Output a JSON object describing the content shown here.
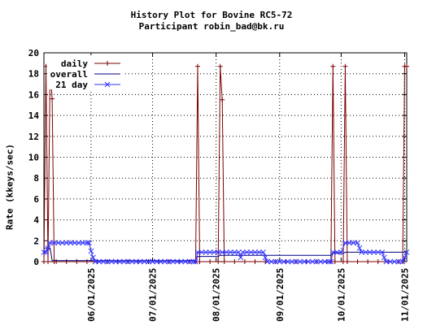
{
  "chart_data": {
    "type": "line",
    "title": "History Plot for Bovine RC5-72",
    "subtitle": "Participant robin_bad@bk.ru",
    "xlabel": "",
    "ylabel": "Rate (kkeys/sec)",
    "x_type": "date",
    "xlim": [
      "2025-05-09",
      "2025-11-02"
    ],
    "ylim": [
      0,
      20
    ],
    "yticks": [
      0,
      2,
      4,
      6,
      8,
      10,
      12,
      14,
      16,
      18,
      20
    ],
    "xtick_labels": [
      "06/01/2025",
      "07/01/2025",
      "08/01/2025",
      "09/01/2025",
      "10/01/2025",
      "11/01/2025"
    ],
    "grid": true,
    "legend_position": "top-left",
    "colors": {
      "daily": "#7a0000",
      "overall": "#000080",
      "21 day": "#3333ff"
    },
    "series": [
      {
        "name": "daily",
        "marker": "plus",
        "points": [
          [
            "2025-05-09",
            0
          ],
          [
            "2025-05-10",
            18.7
          ],
          [
            "2025-05-11",
            0
          ],
          [
            "2025-05-12",
            18.7
          ],
          [
            "2025-05-13",
            15.6
          ],
          [
            "2025-05-14",
            0
          ],
          [
            "2025-05-15",
            0
          ],
          [
            "2025-05-20",
            0
          ],
          [
            "2025-05-25",
            0
          ],
          [
            "2025-05-30",
            0
          ],
          [
            "2025-06-04",
            0
          ],
          [
            "2025-06-09",
            0
          ],
          [
            "2025-06-14",
            0
          ],
          [
            "2025-06-19",
            0
          ],
          [
            "2025-06-24",
            0
          ],
          [
            "2025-06-29",
            0
          ],
          [
            "2025-07-04",
            0
          ],
          [
            "2025-07-09",
            0
          ],
          [
            "2025-07-14",
            0
          ],
          [
            "2025-07-19",
            0
          ],
          [
            "2025-07-22",
            0
          ],
          [
            "2025-07-23",
            18.7
          ],
          [
            "2025-07-24",
            0
          ],
          [
            "2025-07-29",
            0
          ],
          [
            "2025-08-02",
            0
          ],
          [
            "2025-08-03",
            18.7
          ],
          [
            "2025-08-04",
            15.5
          ],
          [
            "2025-08-05",
            0
          ],
          [
            "2025-08-10",
            0
          ],
          [
            "2025-08-15",
            0
          ],
          [
            "2025-08-20",
            0
          ],
          [
            "2025-08-25",
            0
          ],
          [
            "2025-08-30",
            0
          ],
          [
            "2025-09-04",
            0
          ],
          [
            "2025-09-09",
            0
          ],
          [
            "2025-09-14",
            0
          ],
          [
            "2025-09-19",
            0
          ],
          [
            "2025-09-24",
            0
          ],
          [
            "2025-09-26",
            0
          ],
          [
            "2025-09-27",
            18.7
          ],
          [
            "2025-09-28",
            0
          ],
          [
            "2025-10-02",
            0
          ],
          [
            "2025-10-03",
            18.7
          ],
          [
            "2025-10-04",
            0
          ],
          [
            "2025-10-09",
            0
          ],
          [
            "2025-10-14",
            0
          ],
          [
            "2025-10-19",
            0
          ],
          [
            "2025-10-24",
            0
          ],
          [
            "2025-10-29",
            0
          ],
          [
            "2025-10-31",
            0
          ],
          [
            "2025-11-01",
            18.7
          ],
          [
            "2025-11-02",
            18.7
          ]
        ]
      },
      {
        "name": "overall",
        "marker": "none",
        "points": [
          [
            "2025-05-09",
            1.3
          ],
          [
            "2025-05-12",
            1.3
          ],
          [
            "2025-05-13",
            0.1
          ],
          [
            "2025-07-22",
            0.1
          ],
          [
            "2025-07-23",
            0.5
          ],
          [
            "2025-08-02",
            0.5
          ],
          [
            "2025-08-03",
            0.6
          ],
          [
            "2025-09-26",
            0.6
          ],
          [
            "2025-09-27",
            0.8
          ],
          [
            "2025-10-02",
            0.8
          ],
          [
            "2025-10-03",
            0.9
          ],
          [
            "2025-11-02",
            0.9
          ]
        ]
      },
      {
        "name": "21 day",
        "marker": "x",
        "points": [
          [
            "2025-05-09",
            0.9
          ],
          [
            "2025-05-10",
            0.9
          ],
          [
            "2025-05-11",
            1.3
          ],
          [
            "2025-05-12",
            1.8
          ],
          [
            "2025-05-14",
            1.8
          ],
          [
            "2025-05-16",
            1.8
          ],
          [
            "2025-05-18",
            1.8
          ],
          [
            "2025-05-20",
            1.8
          ],
          [
            "2025-05-22",
            1.8
          ],
          [
            "2025-05-24",
            1.8
          ],
          [
            "2025-05-26",
            1.8
          ],
          [
            "2025-05-28",
            1.8
          ],
          [
            "2025-05-30",
            1.8
          ],
          [
            "2025-05-31",
            1.8
          ],
          [
            "2025-06-01",
            1.0
          ],
          [
            "2025-06-02",
            0.4
          ],
          [
            "2025-06-03",
            0
          ],
          [
            "2025-06-05",
            0
          ],
          [
            "2025-06-07",
            0
          ],
          [
            "2025-06-09",
            0
          ],
          [
            "2025-06-11",
            0
          ],
          [
            "2025-06-13",
            0
          ],
          [
            "2025-06-15",
            0
          ],
          [
            "2025-06-17",
            0
          ],
          [
            "2025-06-19",
            0
          ],
          [
            "2025-06-21",
            0
          ],
          [
            "2025-06-23",
            0
          ],
          [
            "2025-06-25",
            0
          ],
          [
            "2025-06-27",
            0
          ],
          [
            "2025-06-29",
            0
          ],
          [
            "2025-07-01",
            0
          ],
          [
            "2025-07-03",
            0
          ],
          [
            "2025-07-05",
            0
          ],
          [
            "2025-07-07",
            0
          ],
          [
            "2025-07-09",
            0
          ],
          [
            "2025-07-11",
            0
          ],
          [
            "2025-07-13",
            0
          ],
          [
            "2025-07-15",
            0
          ],
          [
            "2025-07-17",
            0
          ],
          [
            "2025-07-19",
            0
          ],
          [
            "2025-07-21",
            0
          ],
          [
            "2025-07-22",
            0
          ],
          [
            "2025-07-23",
            0.9
          ],
          [
            "2025-07-25",
            0.9
          ],
          [
            "2025-07-27",
            0.9
          ],
          [
            "2025-07-29",
            0.9
          ],
          [
            "2025-07-31",
            0.9
          ],
          [
            "2025-08-02",
            0.9
          ],
          [
            "2025-08-04",
            0.9
          ],
          [
            "2025-08-06",
            0.9
          ],
          [
            "2025-08-08",
            0.9
          ],
          [
            "2025-08-10",
            0.9
          ],
          [
            "2025-08-12",
            0.9
          ],
          [
            "2025-08-13",
            0.4
          ],
          [
            "2025-08-14",
            0.9
          ],
          [
            "2025-08-16",
            0.9
          ],
          [
            "2025-08-18",
            0.9
          ],
          [
            "2025-08-20",
            0.9
          ],
          [
            "2025-08-22",
            0.9
          ],
          [
            "2025-08-24",
            0.9
          ],
          [
            "2025-08-25",
            0.4
          ],
          [
            "2025-08-26",
            0
          ],
          [
            "2025-08-28",
            0
          ],
          [
            "2025-08-30",
            0
          ],
          [
            "2025-09-01",
            0
          ],
          [
            "2025-09-03",
            0
          ],
          [
            "2025-09-05",
            0
          ],
          [
            "2025-09-07",
            0
          ],
          [
            "2025-09-09",
            0
          ],
          [
            "2025-09-11",
            0
          ],
          [
            "2025-09-13",
            0
          ],
          [
            "2025-09-15",
            0
          ],
          [
            "2025-09-17",
            0
          ],
          [
            "2025-09-19",
            0
          ],
          [
            "2025-09-21",
            0
          ],
          [
            "2025-09-23",
            0
          ],
          [
            "2025-09-25",
            0
          ],
          [
            "2025-09-26",
            0
          ],
          [
            "2025-09-27",
            0.9
          ],
          [
            "2025-09-29",
            0.9
          ],
          [
            "2025-10-01",
            0.9
          ],
          [
            "2025-10-03",
            1.8
          ],
          [
            "2025-10-05",
            1.8
          ],
          [
            "2025-10-07",
            1.8
          ],
          [
            "2025-10-09",
            1.8
          ],
          [
            "2025-10-10",
            1.3
          ],
          [
            "2025-10-11",
            0.9
          ],
          [
            "2025-10-13",
            0.9
          ],
          [
            "2025-10-15",
            0.9
          ],
          [
            "2025-10-17",
            0.9
          ],
          [
            "2025-10-19",
            0.9
          ],
          [
            "2025-10-21",
            0.9
          ],
          [
            "2025-10-22",
            0.4
          ],
          [
            "2025-10-23",
            0
          ],
          [
            "2025-10-25",
            0
          ],
          [
            "2025-10-27",
            0
          ],
          [
            "2025-10-29",
            0
          ],
          [
            "2025-10-31",
            0
          ],
          [
            "2025-11-01",
            0.4
          ],
          [
            "2025-11-02",
            0.9
          ]
        ]
      }
    ]
  }
}
